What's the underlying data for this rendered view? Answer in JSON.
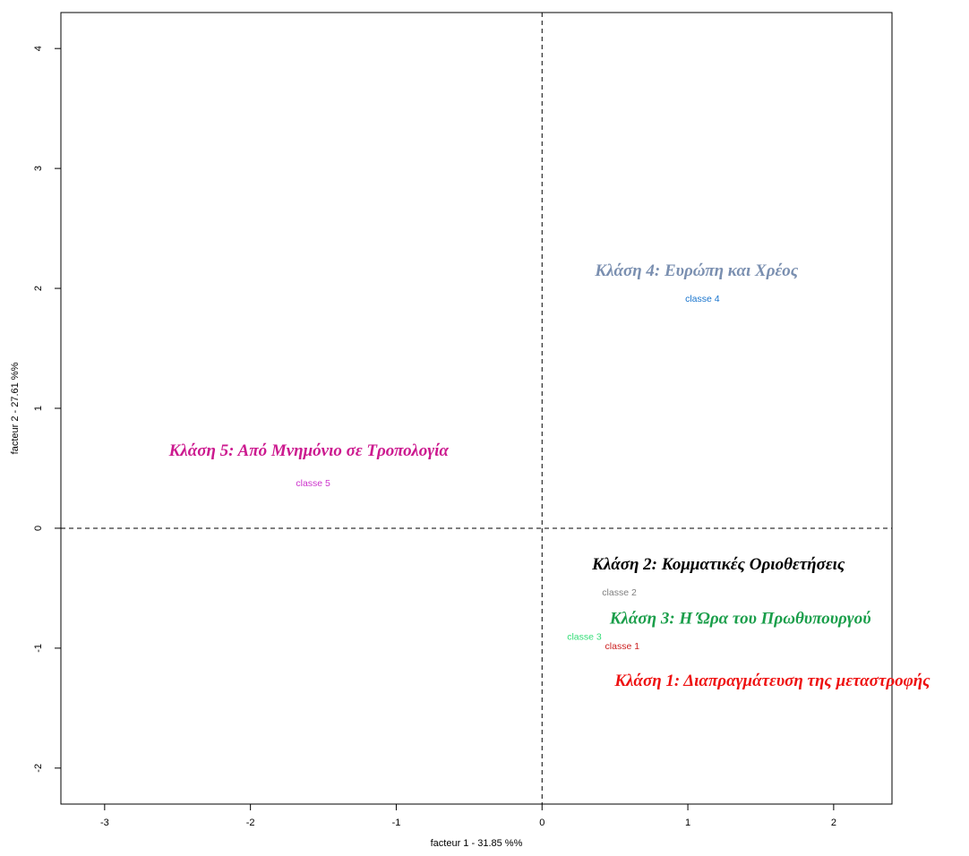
{
  "chart_data": {
    "type": "scatter",
    "title": "",
    "xlabel": "facteur  1  - 31.85 %%",
    "ylabel": "facteur  2  - 27.61 %%",
    "xlim": [
      -3.3,
      2.4
    ],
    "ylim": [
      -2.3,
      4.3
    ],
    "xticks": [
      -3,
      -2,
      -1,
      0,
      1,
      2
    ],
    "yticks": [
      -2,
      -1,
      0,
      1,
      2,
      3,
      4
    ],
    "reference_lines": {
      "x": 0,
      "y": 0,
      "style": "dashed"
    },
    "grid": false,
    "points": [
      {
        "label": "classe 4",
        "x": 1.1,
        "y": 1.92,
        "color": "#1874cd"
      },
      {
        "label": "classe 5",
        "x": -1.57,
        "y": 0.38,
        "color": "#cc33cc"
      },
      {
        "label": "classe 2",
        "x": 0.53,
        "y": -0.53,
        "color": "#808080"
      },
      {
        "label": "classe 3",
        "x": 0.29,
        "y": -0.9,
        "color": "#33dd77"
      },
      {
        "label": "classe 1",
        "x": 0.55,
        "y": -0.98,
        "color": "#cc2222"
      }
    ],
    "annotations": [
      {
        "text": "Κλάση 4: Ευρώπη και Χρέος",
        "x": 1.06,
        "y": 2.15,
        "color": "#7a8fb0"
      },
      {
        "text": "Κλάση 5: Από Μνημόνιο σε Τροπολογία",
        "x": -1.6,
        "y": 0.65,
        "color": "#cc1a8f"
      },
      {
        "text": "Κλάση 2: Κομματικές Οριοθετήσεις",
        "x": 1.21,
        "y": -0.3,
        "color": "#000000"
      },
      {
        "text": "Κλάση 3: Η Ώρα του Πρωθυπουργού",
        "x": 1.36,
        "y": -0.75,
        "color": "#1a9e4a"
      },
      {
        "text": "Κλάση 1: Διαπραγμάτευση της μεταστροφής",
        "x": 1.58,
        "y": -1.27,
        "color": "#ee1111"
      }
    ]
  }
}
